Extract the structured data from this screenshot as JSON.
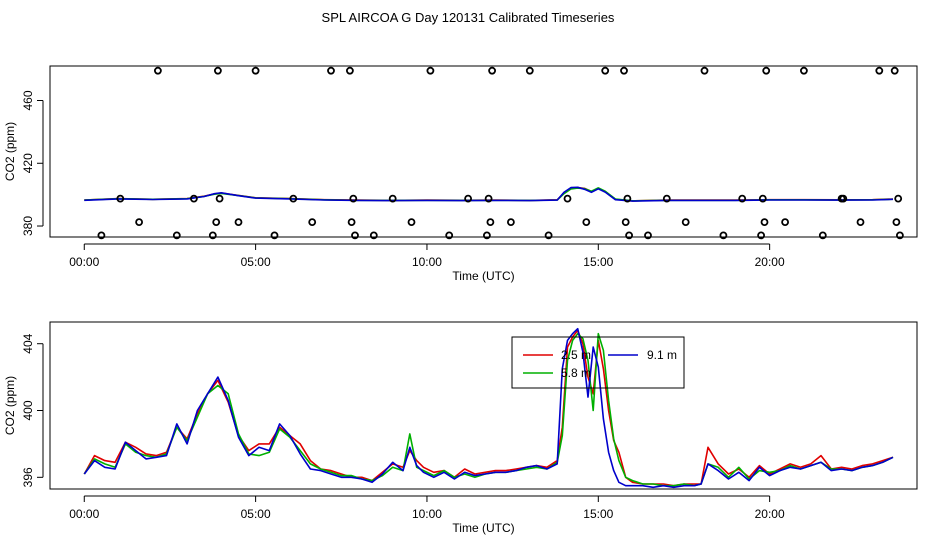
{
  "page_title": "SPL AIRCOA G  Day 120131  Calibrated Timeseries",
  "colors": {
    "red": "#e00000",
    "green": "#00b000",
    "blue": "#0000cc",
    "axis": "#000000"
  },
  "chart_data": [
    {
      "type": "line",
      "id": "top",
      "xlabel": "Time (UTC)",
      "ylabel": "CO2 (ppm)",
      "xlim": [
        -1.0,
        24.3
      ],
      "ylim": [
        373,
        482
      ],
      "xticks": [
        0,
        5,
        10,
        15,
        20
      ],
      "xtick_labels": [
        "00:00",
        "05:00",
        "10:00",
        "15:00",
        "20:00"
      ],
      "yticks": [
        380,
        420,
        460
      ],
      "ytick_labels": [
        "380",
        "420",
        "460"
      ],
      "series": [
        {
          "name": "2.5 m",
          "color": "#e00000",
          "x": [
            0,
            1,
            2,
            3,
            3.5,
            3.8,
            4,
            4.5,
            5,
            6,
            7,
            8,
            9,
            10,
            11,
            12,
            13,
            13.8,
            14.0,
            14.2,
            14.4,
            14.6,
            14.8,
            15.0,
            15.2,
            15.5,
            16,
            17,
            18,
            19,
            20,
            21,
            22,
            23,
            23.6
          ],
          "y": [
            396.5,
            397.5,
            397,
            397.5,
            399,
            400.5,
            401,
            399.5,
            398,
            397.5,
            396.8,
            396.5,
            396.3,
            396.5,
            396.4,
            396.5,
            396.3,
            396.7,
            401,
            404,
            404.5,
            404,
            402,
            404,
            402,
            397,
            396,
            396.5,
            396.5,
            396.5,
            396.8,
            396.8,
            396.7,
            396.8,
            397.2
          ]
        },
        {
          "name": "5.8 m",
          "color": "#00b000",
          "x": [
            0,
            1,
            2,
            3,
            3.5,
            3.8,
            4,
            4.5,
            5,
            6,
            7,
            8,
            9,
            10,
            11,
            12,
            13,
            13.8,
            14.0,
            14.2,
            14.4,
            14.6,
            14.8,
            15.0,
            15.2,
            15.5,
            16,
            17,
            18,
            19,
            20,
            21,
            22,
            23,
            23.6
          ],
          "y": [
            396.5,
            397.4,
            397,
            397.4,
            398.9,
            400.3,
            400.8,
            399.4,
            397.9,
            397.4,
            396.7,
            396.4,
            396.3,
            396.4,
            396.3,
            396.4,
            396.3,
            396.6,
            400.6,
            403.6,
            404.2,
            403.8,
            402.2,
            404.3,
            402.2,
            397.2,
            396.1,
            396.4,
            396.4,
            396.4,
            396.7,
            396.7,
            396.6,
            396.7,
            397.1
          ]
        },
        {
          "name": "9.1 m",
          "color": "#0000cc",
          "x": [
            0,
            1,
            2,
            3,
            3.5,
            3.8,
            4,
            4.5,
            5,
            6,
            7,
            8,
            9,
            10,
            11,
            12,
            13,
            13.8,
            14.0,
            14.2,
            14.4,
            14.6,
            14.8,
            15.0,
            15.2,
            15.5,
            16,
            17,
            18,
            19,
            20,
            21,
            22,
            23,
            23.6
          ],
          "y": [
            396.4,
            397.3,
            396.9,
            397.3,
            398.8,
            400.6,
            401.2,
            399.3,
            397.8,
            397.3,
            396.6,
            396.3,
            396.2,
            396.3,
            396.2,
            396.3,
            396.2,
            396.5,
            401.5,
            404.5,
            404.7,
            403.4,
            401.5,
            403.7,
            401.6,
            396.8,
            395.9,
            396.3,
            396.3,
            396.3,
            396.6,
            396.6,
            396.5,
            396.6,
            397.0
          ]
        }
      ],
      "calibration_points": [
        {
          "x": 0.5,
          "y": 374
        },
        {
          "x": 1.05,
          "y": 397.5
        },
        {
          "x": 1.6,
          "y": 382.5
        },
        {
          "x": 2.15,
          "y": 479
        },
        {
          "x": 2.7,
          "y": 374
        },
        {
          "x": 3.2,
          "y": 397.5
        },
        {
          "x": 3.75,
          "y": 374
        },
        {
          "x": 3.85,
          "y": 382.5
        },
        {
          "x": 3.9,
          "y": 479
        },
        {
          "x": 3.95,
          "y": 397.5
        },
        {
          "x": 4.5,
          "y": 382.5
        },
        {
          "x": 5.0,
          "y": 479
        },
        {
          "x": 5.55,
          "y": 374
        },
        {
          "x": 6.1,
          "y": 397.5
        },
        {
          "x": 6.65,
          "y": 382.5
        },
        {
          "x": 7.2,
          "y": 479
        },
        {
          "x": 7.75,
          "y": 479
        },
        {
          "x": 7.8,
          "y": 382.5
        },
        {
          "x": 7.85,
          "y": 397.5
        },
        {
          "x": 7.9,
          "y": 374
        },
        {
          "x": 8.45,
          "y": 374
        },
        {
          "x": 9.0,
          "y": 397.5
        },
        {
          "x": 9.55,
          "y": 382.5
        },
        {
          "x": 10.1,
          "y": 479
        },
        {
          "x": 10.65,
          "y": 374
        },
        {
          "x": 11.2,
          "y": 397.5
        },
        {
          "x": 11.75,
          "y": 374
        },
        {
          "x": 11.8,
          "y": 397.5
        },
        {
          "x": 11.85,
          "y": 382.5
        },
        {
          "x": 11.9,
          "y": 479
        },
        {
          "x": 12.45,
          "y": 382.5
        },
        {
          "x": 13.0,
          "y": 479
        },
        {
          "x": 13.55,
          "y": 374
        },
        {
          "x": 14.1,
          "y": 397.5
        },
        {
          "x": 14.65,
          "y": 382.5
        },
        {
          "x": 15.2,
          "y": 479
        },
        {
          "x": 15.75,
          "y": 479
        },
        {
          "x": 15.8,
          "y": 382.5
        },
        {
          "x": 15.85,
          "y": 397.5
        },
        {
          "x": 15.9,
          "y": 374
        },
        {
          "x": 16.45,
          "y": 374
        },
        {
          "x": 17.0,
          "y": 397.5
        },
        {
          "x": 17.55,
          "y": 382.5
        },
        {
          "x": 18.1,
          "y": 479
        },
        {
          "x": 18.65,
          "y": 374
        },
        {
          "x": 19.2,
          "y": 397.5
        },
        {
          "x": 19.75,
          "y": 374
        },
        {
          "x": 19.8,
          "y": 397.5
        },
        {
          "x": 19.85,
          "y": 382.5
        },
        {
          "x": 19.9,
          "y": 479
        },
        {
          "x": 20.45,
          "y": 382.5
        },
        {
          "x": 21.0,
          "y": 479
        },
        {
          "x": 21.55,
          "y": 374
        },
        {
          "x": 22.1,
          "y": 397.5
        },
        {
          "x": 22.15,
          "y": 397.5
        },
        {
          "x": 22.65,
          "y": 382.5
        },
        {
          "x": 23.2,
          "y": 479
        },
        {
          "x": 23.65,
          "y": 479
        },
        {
          "x": 23.7,
          "y": 382.5
        },
        {
          "x": 23.75,
          "y": 397.5
        },
        {
          "x": 23.8,
          "y": 374
        }
      ]
    },
    {
      "type": "line",
      "id": "bottom",
      "xlabel": "Time (UTC)",
      "ylabel": "CO2 (ppm)",
      "xlim": [
        -1.0,
        24.3
      ],
      "ylim": [
        395.3,
        405.3
      ],
      "xticks": [
        0,
        5,
        10,
        15,
        20
      ],
      "xtick_labels": [
        "00:00",
        "05:00",
        "10:00",
        "15:00",
        "20:00"
      ],
      "yticks": [
        396,
        400,
        404
      ],
      "ytick_labels": [
        "396",
        "400",
        "404"
      ],
      "legend": {
        "entries": [
          "2.5 m",
          "5.8 m",
          "9.1 m"
        ],
        "location": "top-center"
      },
      "series": [
        {
          "name": "2.5 m",
          "color": "#e00000",
          "x": [
            0,
            0.3,
            0.6,
            0.9,
            1.2,
            1.5,
            1.8,
            2.1,
            2.4,
            2.7,
            3.0,
            3.3,
            3.6,
            3.9,
            4.2,
            4.5,
            4.8,
            5.1,
            5.4,
            5.7,
            6.0,
            6.3,
            6.6,
            6.9,
            7.2,
            7.5,
            7.8,
            8.1,
            8.4,
            8.7,
            9.0,
            9.3,
            9.5,
            9.7,
            9.9,
            10.2,
            10.5,
            10.8,
            11.1,
            11.4,
            11.7,
            12.0,
            12.3,
            12.6,
            12.9,
            13.2,
            13.5,
            13.8,
            13.95,
            14.1,
            14.25,
            14.4,
            14.55,
            14.7,
            14.85,
            15.0,
            15.15,
            15.3,
            15.45,
            15.6,
            15.8,
            16.0,
            16.3,
            16.6,
            16.9,
            17.2,
            17.5,
            17.8,
            18.0,
            18.2,
            18.5,
            18.8,
            19.1,
            19.4,
            19.7,
            20.0,
            20.3,
            20.6,
            20.9,
            21.2,
            21.5,
            21.8,
            22.1,
            22.4,
            22.7,
            23.0,
            23.3,
            23.6
          ],
          "y": [
            396.2,
            397.3,
            397.0,
            396.9,
            398.1,
            397.8,
            397.4,
            397.3,
            397.5,
            399.0,
            398.3,
            399.8,
            401.0,
            401.8,
            400.5,
            398.5,
            397.6,
            398.0,
            398.0,
            399.0,
            398.5,
            398.0,
            397.0,
            396.5,
            396.4,
            396.2,
            396.0,
            396.0,
            395.8,
            396.3,
            396.8,
            396.6,
            397.6,
            397.0,
            396.6,
            396.3,
            396.4,
            396.0,
            396.5,
            396.2,
            396.3,
            396.4,
            396.4,
            396.5,
            396.6,
            396.7,
            396.6,
            397.0,
            399.0,
            403.8,
            404.4,
            404.8,
            404.0,
            402.0,
            401.0,
            404.2,
            402.5,
            400.0,
            398.2,
            397.5,
            396.0,
            395.7,
            395.6,
            395.6,
            395.6,
            395.5,
            395.6,
            395.6,
            395.6,
            397.8,
            396.8,
            396.2,
            396.5,
            396.0,
            396.7,
            396.2,
            396.5,
            396.8,
            396.6,
            396.8,
            397.3,
            396.5,
            396.6,
            396.5,
            396.7,
            396.8,
            397.0,
            397.2
          ]
        },
        {
          "name": "5.8 m",
          "color": "#00b000",
          "x": [
            0,
            0.3,
            0.6,
            0.9,
            1.2,
            1.5,
            1.8,
            2.1,
            2.4,
            2.7,
            3.0,
            3.3,
            3.6,
            3.9,
            4.2,
            4.5,
            4.8,
            5.1,
            5.4,
            5.7,
            6.0,
            6.3,
            6.6,
            6.9,
            7.2,
            7.5,
            7.8,
            8.1,
            8.4,
            8.7,
            9.0,
            9.3,
            9.5,
            9.7,
            9.9,
            10.2,
            10.5,
            10.8,
            11.1,
            11.4,
            11.7,
            12.0,
            12.3,
            12.6,
            12.9,
            13.2,
            13.5,
            13.8,
            13.95,
            14.1,
            14.25,
            14.4,
            14.55,
            14.7,
            14.85,
            15.0,
            15.15,
            15.3,
            15.45,
            15.6,
            15.8,
            16.0,
            16.3,
            16.6,
            16.9,
            17.2,
            17.5,
            17.8,
            18.0,
            18.2,
            18.5,
            18.8,
            19.1,
            19.4,
            19.7,
            20.0,
            20.3,
            20.6,
            20.9,
            21.2,
            21.5,
            21.8,
            22.1,
            22.4,
            22.7,
            23.0,
            23.3,
            23.6
          ],
          "y": [
            396.2,
            397.1,
            396.8,
            396.6,
            398.0,
            397.5,
            397.3,
            397.2,
            397.4,
            399.0,
            398.2,
            399.6,
            401.0,
            401.5,
            401.0,
            398.6,
            397.4,
            397.3,
            397.5,
            398.9,
            398.4,
            397.6,
            396.8,
            396.5,
            396.3,
            396.1,
            396.1,
            395.9,
            395.8,
            396.1,
            396.6,
            396.4,
            398.6,
            396.6,
            396.4,
            396.1,
            396.4,
            396.0,
            396.2,
            396.0,
            396.2,
            396.3,
            396.3,
            396.4,
            396.5,
            396.6,
            396.5,
            396.9,
            398.5,
            403.0,
            404.2,
            404.6,
            404.3,
            403.0,
            400.0,
            404.6,
            403.6,
            400.6,
            398.3,
            397.0,
            396.0,
            395.8,
            395.6,
            395.6,
            395.5,
            395.5,
            395.6,
            395.5,
            395.6,
            396.8,
            396.6,
            396.0,
            396.6,
            395.9,
            396.4,
            396.3,
            396.4,
            396.7,
            396.5,
            396.7,
            396.9,
            396.5,
            396.5,
            396.4,
            396.6,
            396.7,
            396.9,
            397.2
          ]
        },
        {
          "name": "9.1 m",
          "color": "#0000cc",
          "x": [
            0,
            0.3,
            0.6,
            0.9,
            1.2,
            1.5,
            1.8,
            2.1,
            2.4,
            2.7,
            3.0,
            3.3,
            3.6,
            3.9,
            4.2,
            4.5,
            4.8,
            5.1,
            5.4,
            5.7,
            6.0,
            6.3,
            6.6,
            6.9,
            7.2,
            7.5,
            7.8,
            8.1,
            8.4,
            8.7,
            9.0,
            9.3,
            9.5,
            9.7,
            9.9,
            10.2,
            10.5,
            10.8,
            11.1,
            11.4,
            11.7,
            12.0,
            12.3,
            12.6,
            12.9,
            13.2,
            13.5,
            13.8,
            13.95,
            14.1,
            14.25,
            14.4,
            14.55,
            14.7,
            14.85,
            15.0,
            15.15,
            15.3,
            15.45,
            15.6,
            15.8,
            16.0,
            16.3,
            16.6,
            16.9,
            17.2,
            17.5,
            17.8,
            18.0,
            18.2,
            18.5,
            18.8,
            19.1,
            19.4,
            19.7,
            20.0,
            20.3,
            20.6,
            20.9,
            21.2,
            21.5,
            21.8,
            22.1,
            22.4,
            22.7,
            23.0,
            23.3,
            23.6
          ],
          "y": [
            396.2,
            397.0,
            396.6,
            396.5,
            398.1,
            397.6,
            397.1,
            397.2,
            397.3,
            399.2,
            398.0,
            400.0,
            401.0,
            402.0,
            400.6,
            398.4,
            397.3,
            397.8,
            397.6,
            399.2,
            398.5,
            397.4,
            396.5,
            396.4,
            396.2,
            396.0,
            396.0,
            395.9,
            395.7,
            396.2,
            396.9,
            396.4,
            397.8,
            396.7,
            396.3,
            396.0,
            396.3,
            395.9,
            396.3,
            396.1,
            396.2,
            396.3,
            396.3,
            396.4,
            396.6,
            396.7,
            396.5,
            396.8,
            402.5,
            404.2,
            404.6,
            404.9,
            403.5,
            400.8,
            403.8,
            402.6,
            399.5,
            397.5,
            396.4,
            395.7,
            395.5,
            395.5,
            395.5,
            395.4,
            395.5,
            395.4,
            395.5,
            395.5,
            395.6,
            396.8,
            396.4,
            395.9,
            396.3,
            395.8,
            396.6,
            396.1,
            396.4,
            396.6,
            396.5,
            396.7,
            396.9,
            396.4,
            396.5,
            396.4,
            396.6,
            396.7,
            396.9,
            397.2
          ]
        }
      ]
    }
  ]
}
